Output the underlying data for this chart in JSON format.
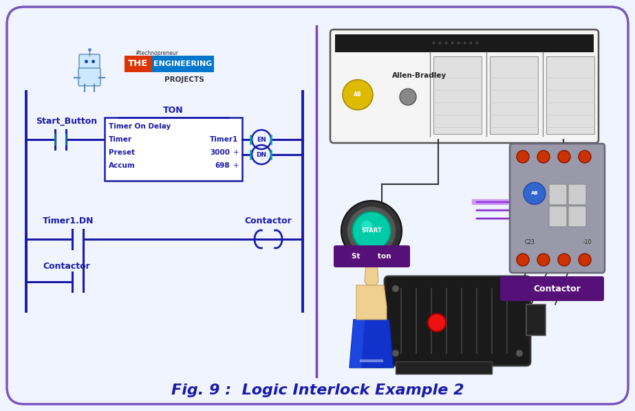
{
  "bg_color": "#f0f4ff",
  "border_color": "#7755bb",
  "ladder_color": "#1a1aaa",
  "teal_color": "#00aaaa",
  "title_text": "Fig. 9 :  Logic Interlock Example 2",
  "title_color": "#1a1aaa",
  "title_fontsize": 16,
  "rung1_label": "Start_Button",
  "ton_title": "TON",
  "ton_line1": "Timer On Delay",
  "ton_timer_label": "Timer",
  "ton_timer_value": "Timer1",
  "ton_preset_label": "Preset",
  "ton_preset_value": "3000",
  "ton_accum_label": "Accum",
  "ton_accum_value": "698",
  "en_label": "EN",
  "dn_label": "DN",
  "rung2_contact_label": "Timer1.DN",
  "rung2_coil_label": "Contactor",
  "rung2_parallel_label": "Contactor",
  "divider_color": "#7744bb",
  "logo_text_the": "THE",
  "logo_text_eng": "ENGINEERING",
  "logo_text_proj": "PROJECTS",
  "logo_color_the": "#dd3300",
  "logo_color_eng": "#0077cc",
  "logo_tag": "#technopreneur",
  "purple_label_bg": "#551177",
  "contactor_label": "Contactor",
  "start_btn_label": "St       ton"
}
